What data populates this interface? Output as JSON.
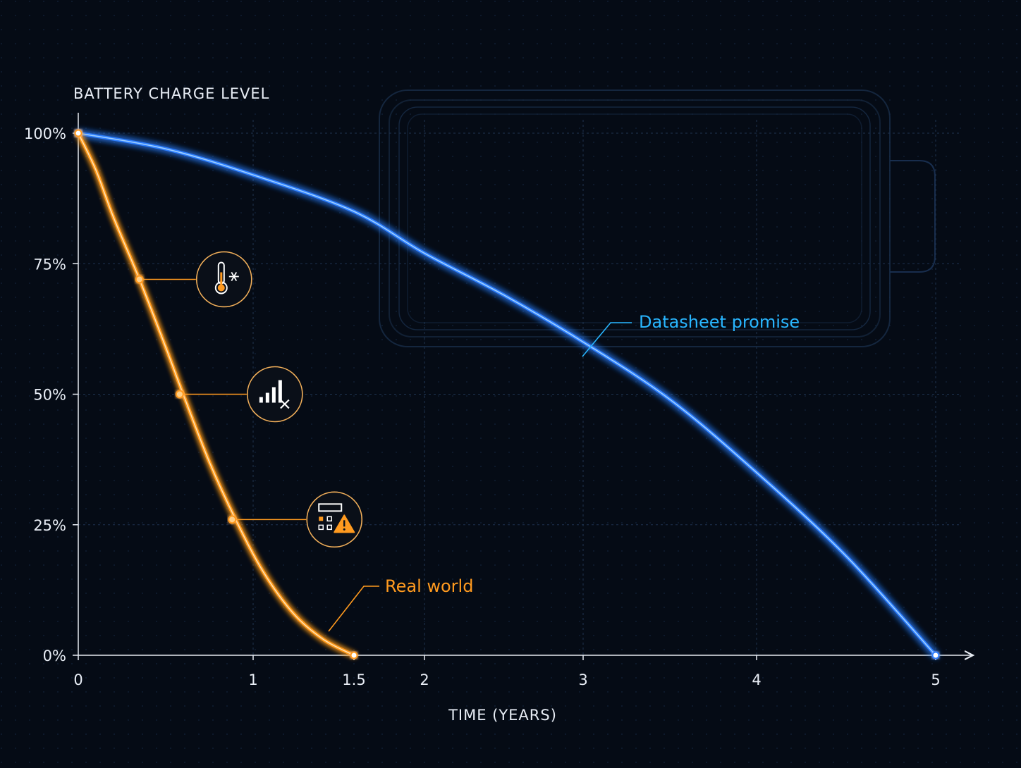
{
  "colors": {
    "background": "#050b15",
    "datasheet": "#2f7fff",
    "real_world": "#ff9a1f",
    "datasheet_label": "#29b6ff",
    "grid": "#1e3350",
    "axis": "#e6ebf2"
  },
  "chart_data": {
    "type": "line",
    "title": "",
    "ylabel": "BATTERY CHARGE LEVEL",
    "xlabel": "TIME (YEARS)",
    "xlim": [
      0,
      5.2
    ],
    "ylim": [
      0,
      100
    ],
    "y_ticks": [
      {
        "value": 100,
        "label": "100%"
      },
      {
        "value": 75,
        "label": "75%"
      },
      {
        "value": 50,
        "label": "50%"
      },
      {
        "value": 25,
        "label": "25%"
      },
      {
        "value": 0,
        "label": "0%"
      }
    ],
    "x_ticks": [
      {
        "value": 0,
        "label": "0"
      },
      {
        "value": 1,
        "label": "1"
      },
      {
        "value": 1.5,
        "label": "1.5"
      },
      {
        "value": 2,
        "label": "2"
      },
      {
        "value": 3,
        "label": "3"
      },
      {
        "value": 4,
        "label": "4"
      },
      {
        "value": 5,
        "label": "5"
      }
    ],
    "grid": true,
    "series": [
      {
        "name": "Datasheet promise",
        "x": [
          0,
          0.5,
          1,
          1.5,
          2,
          2.5,
          3,
          3.5,
          4,
          4.5,
          5
        ],
        "y": [
          100,
          97,
          92,
          85,
          77,
          69,
          60,
          49,
          35,
          19,
          0
        ]
      },
      {
        "name": "Real world",
        "x": [
          0,
          0.1,
          0.2,
          0.35,
          0.5,
          0.6,
          0.75,
          0.9,
          1.05,
          1.2,
          1.35,
          1.5
        ],
        "y": [
          100,
          93,
          84,
          72,
          59,
          50,
          37,
          26,
          16,
          8,
          3,
          0
        ]
      }
    ],
    "annotations": [
      {
        "x": 0.35,
        "y": 72,
        "icon": "thermometer-snowflake-icon"
      },
      {
        "x": 0.58,
        "y": 50,
        "icon": "no-signal-icon"
      },
      {
        "x": 0.88,
        "y": 26,
        "icon": "system-warning-icon"
      }
    ],
    "background_graphic": "battery-outline-icon"
  }
}
